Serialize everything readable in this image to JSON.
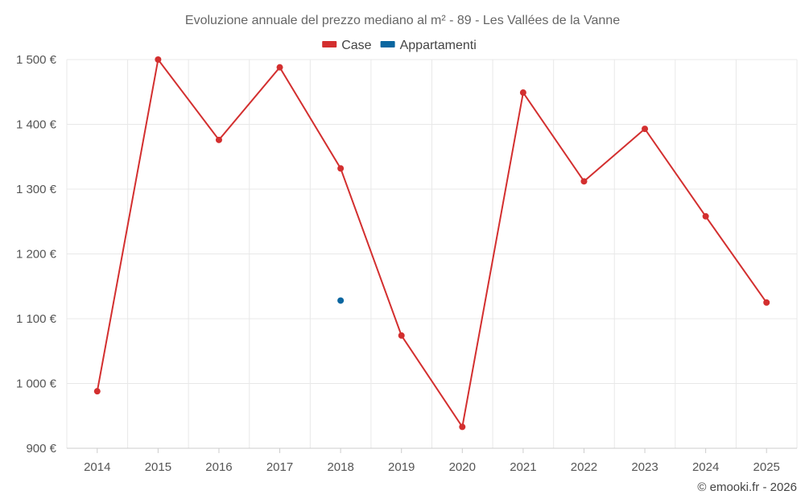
{
  "chart_data": {
    "type": "line",
    "title": "Evoluzione annuale del prezzo mediano al m² - 89 - Les Vallées de la Vanne",
    "categories": [
      "2014",
      "2015",
      "2016",
      "2017",
      "2018",
      "2019",
      "2020",
      "2021",
      "2022",
      "2023",
      "2024",
      "2025"
    ],
    "series": [
      {
        "name": "Case",
        "color": "#d32f2f",
        "values": [
          988,
          1500,
          1376,
          1488,
          1332,
          1074,
          933,
          1449,
          1312,
          1393,
          1258,
          1125
        ]
      },
      {
        "name": "Appartamenti",
        "color": "#0a66a0",
        "values": [
          null,
          null,
          null,
          null,
          1128,
          null,
          null,
          null,
          null,
          null,
          null,
          null
        ]
      }
    ],
    "ylim": [
      900,
      1500
    ],
    "yticks": [
      900,
      1000,
      1100,
      1200,
      1300,
      1400,
      1500
    ],
    "ytick_labels": [
      "900 €",
      "1 000 €",
      "1 100 €",
      "1 200 €",
      "1 300 €",
      "1 400 €",
      "1 500 €"
    ],
    "grid": true,
    "legend_position": "top-center"
  },
  "credit": "© emooki.fr - 2026"
}
